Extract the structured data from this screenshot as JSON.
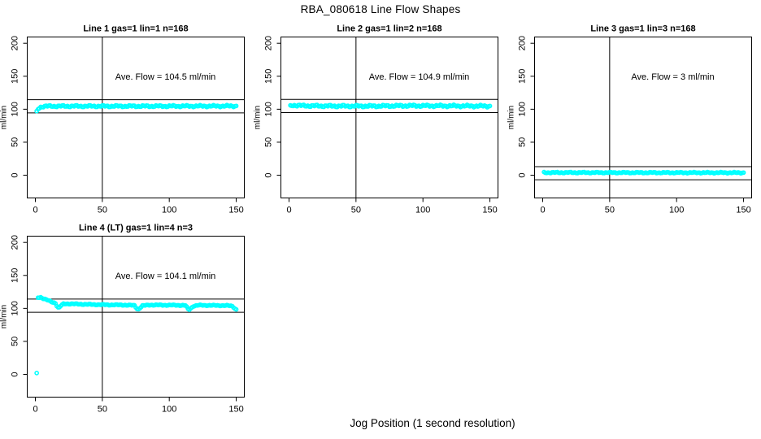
{
  "figure": {
    "title": "RBA_080618  Line Flow Shapes",
    "xlabel": "Jog Position (1 second resolution)",
    "background": "#FFFFFF",
    "foreground": "#000000",
    "point_color": "#00FFFF"
  },
  "chart_data": [
    {
      "type": "scatter",
      "grid_pos": [
        0,
        0
      ],
      "title": "Line 1 gas=1 lin=1 n=168",
      "annotation": "Ave. Flow =  104.5  ml/min",
      "ave_flow": 104.5,
      "n": 168,
      "ref_lines": [
        94.5,
        114.5
      ],
      "vline_x": 50,
      "xlim": [
        0,
        150
      ],
      "ylim": [
        -20,
        200
      ],
      "x_ticks": [
        0,
        50,
        100,
        150
      ],
      "y_ticks": [
        0,
        50,
        100,
        150,
        200
      ],
      "ylabel": "ml/min",
      "series": {
        "name": "flow",
        "x_start": 1,
        "x_end": 150,
        "x_step": 1,
        "keypoints": [
          [
            1,
            96
          ],
          [
            2,
            100.5
          ],
          [
            3,
            102.3
          ],
          [
            4,
            103.4
          ],
          [
            6,
            104.2
          ],
          [
            10,
            104.6
          ],
          [
            80,
            104.6
          ],
          [
            150,
            104.8
          ]
        ],
        "jitter": 1.5,
        "outliers": []
      }
    },
    {
      "type": "scatter",
      "grid_pos": [
        0,
        1
      ],
      "title": "Line 2 gas=1 lin=2 n=168",
      "annotation": "Ave. Flow =  104.9  ml/min",
      "ave_flow": 104.9,
      "n": 168,
      "ref_lines": [
        94.9,
        114.9
      ],
      "vline_x": 50,
      "xlim": [
        0,
        150
      ],
      "ylim": [
        -20,
        200
      ],
      "x_ticks": [
        0,
        50,
        100,
        150
      ],
      "y_ticks": [
        0,
        50,
        100,
        150,
        200
      ],
      "ylabel": "ml/min",
      "series": {
        "name": "flow",
        "x_start": 1,
        "x_end": 150,
        "x_step": 1,
        "keypoints": [
          [
            1,
            104.5
          ],
          [
            2,
            105.8
          ],
          [
            4,
            106
          ],
          [
            10,
            105.3
          ],
          [
            30,
            104.8
          ],
          [
            60,
            104.7
          ],
          [
            90,
            105.3
          ],
          [
            120,
            105.0
          ],
          [
            150,
            104.7
          ]
        ],
        "jitter": 1.8,
        "outliers": []
      }
    },
    {
      "type": "scatter",
      "grid_pos": [
        0,
        2
      ],
      "title": "Line 3 gas=1 lin=3 n=168",
      "annotation": "Ave. Flow =  3  ml/min",
      "ave_flow": 3,
      "n": 168,
      "ref_lines": [
        -7,
        13
      ],
      "vline_x": 50,
      "xlim": [
        0,
        150
      ],
      "ylim": [
        -20,
        200
      ],
      "x_ticks": [
        0,
        50,
        100,
        150
      ],
      "y_ticks": [
        0,
        50,
        100,
        150,
        200
      ],
      "ylabel": "ml/min",
      "series": {
        "name": "flow",
        "x_start": 1,
        "x_end": 150,
        "x_step": 1,
        "keypoints": [
          [
            1,
            4
          ],
          [
            150,
            3.8
          ]
        ],
        "jitter": 1.0,
        "outliers": []
      }
    },
    {
      "type": "scatter",
      "grid_pos": [
        1,
        0
      ],
      "title": "Line 4 (LT) gas=1 lin=4 n=3",
      "annotation": "Ave. Flow =  104.1  ml/min",
      "ave_flow": 104.1,
      "n": 3,
      "ref_lines": [
        94.1,
        114.1
      ],
      "vline_x": 50,
      "xlim": [
        0,
        150
      ],
      "ylim": [
        -20,
        200
      ],
      "x_ticks": [
        0,
        50,
        100,
        150
      ],
      "y_ticks": [
        0,
        50,
        100,
        150,
        200
      ],
      "ylabel": "ml/min",
      "series": {
        "name": "flow",
        "x_start": 2,
        "x_end": 150,
        "x_step": 1,
        "keypoints": [
          [
            2,
            116.5
          ],
          [
            4,
            116.8
          ],
          [
            6,
            115
          ],
          [
            9,
            112.5
          ],
          [
            12,
            110
          ],
          [
            15,
            108
          ],
          [
            16,
            104
          ],
          [
            17,
            101.3
          ],
          [
            18,
            101.5
          ],
          [
            19,
            104
          ],
          [
            21,
            106.8
          ],
          [
            26,
            107
          ],
          [
            35,
            106.3
          ],
          [
            45,
            105.8
          ],
          [
            55,
            105.4
          ],
          [
            65,
            105.2
          ],
          [
            74,
            104.5
          ],
          [
            76,
            99.5
          ],
          [
            77,
            98.7
          ],
          [
            78,
            100.5
          ],
          [
            80,
            104
          ],
          [
            85,
            105.2
          ],
          [
            95,
            105
          ],
          [
            105,
            104.9
          ],
          [
            112,
            104.5
          ],
          [
            113,
            102
          ],
          [
            114,
            99
          ],
          [
            115,
            98.4
          ],
          [
            116,
            100
          ],
          [
            118,
            103.5
          ],
          [
            122,
            104.8
          ],
          [
            130,
            104.6
          ],
          [
            138,
            104.4
          ],
          [
            144,
            104.2
          ],
          [
            147,
            103.5
          ],
          [
            148,
            102
          ],
          [
            149,
            99.8
          ],
          [
            150,
            98.3
          ]
        ],
        "jitter": 0.8,
        "outliers": [
          [
            1,
            2
          ]
        ]
      }
    }
  ]
}
